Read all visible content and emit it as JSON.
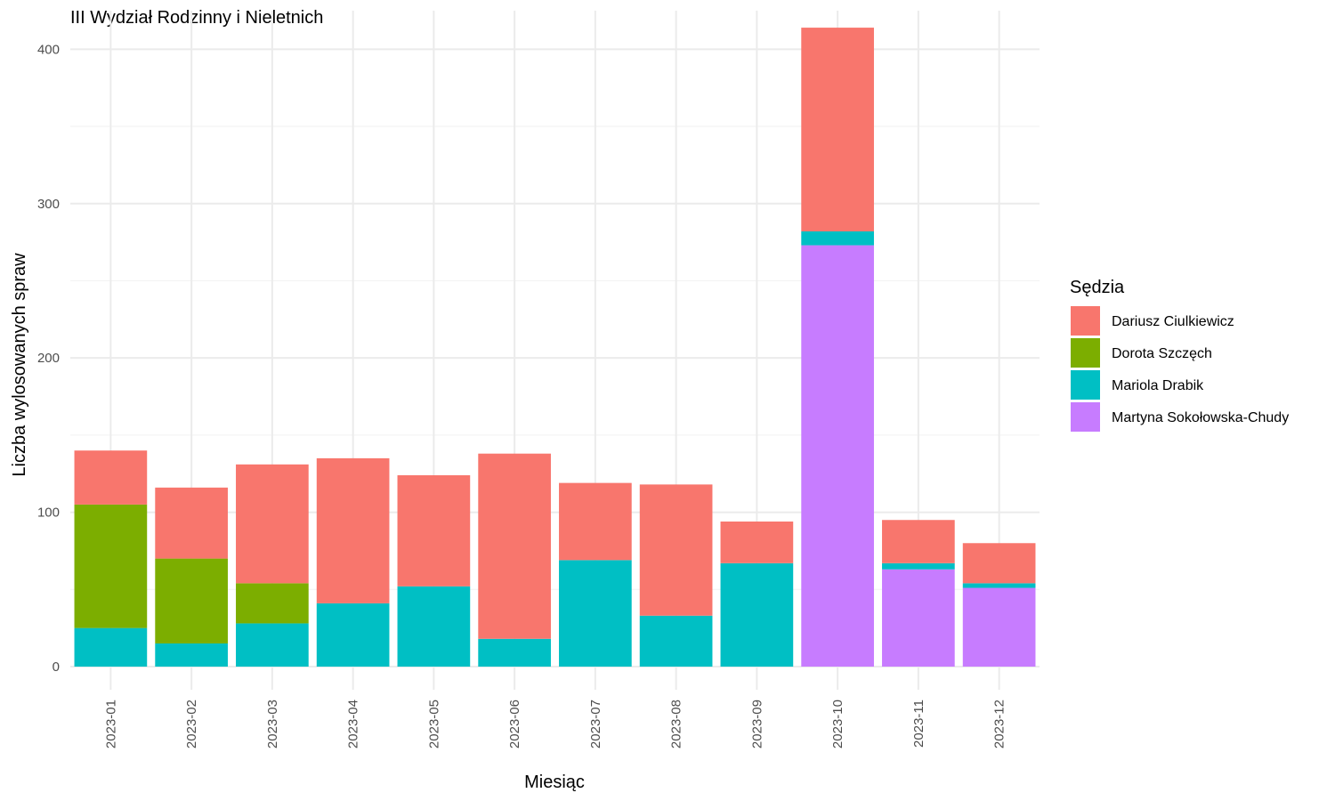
{
  "chart_data": {
    "type": "bar",
    "stacked": true,
    "title": "III Wydział Rodzinny i Nieletnich",
    "xlabel": "Miesiąc",
    "ylabel": "Liczba wylosowanych spraw",
    "ylim": [
      -15,
      425
    ],
    "yticks": [
      0,
      100,
      200,
      300,
      400
    ],
    "grid": true,
    "legend_position": "right",
    "legend_title": "Sędzia",
    "categories": [
      "2023-01",
      "2023-02",
      "2023-03",
      "2023-04",
      "2023-05",
      "2023-06",
      "2023-07",
      "2023-08",
      "2023-09",
      "2023-10",
      "2023-11",
      "2023-12"
    ],
    "stack_order": [
      "Martyna Sokołowska-Chudy",
      "Mariola Drabik",
      "Dorota Szczęch",
      "Dariusz Ciulkiewicz"
    ],
    "series": [
      {
        "name": "Dariusz Ciulkiewicz",
        "color": "#F8766D",
        "values": [
          35,
          46,
          77,
          94,
          72,
          120,
          50,
          85,
          27,
          132,
          28,
          26
        ]
      },
      {
        "name": "Dorota Szczęch",
        "color": "#7CAE00",
        "values": [
          80,
          55,
          26,
          0,
          0,
          0,
          0,
          0,
          0,
          0,
          0,
          0
        ]
      },
      {
        "name": "Mariola Drabik",
        "color": "#00BFC4",
        "values": [
          25,
          15,
          28,
          41,
          52,
          18,
          69,
          33,
          67,
          9,
          4,
          3
        ]
      },
      {
        "name": "Martyna Sokołowska-Chudy",
        "color": "#C77CFF",
        "values": [
          0,
          0,
          0,
          0,
          0,
          0,
          0,
          0,
          0,
          273,
          63,
          51
        ]
      }
    ]
  }
}
